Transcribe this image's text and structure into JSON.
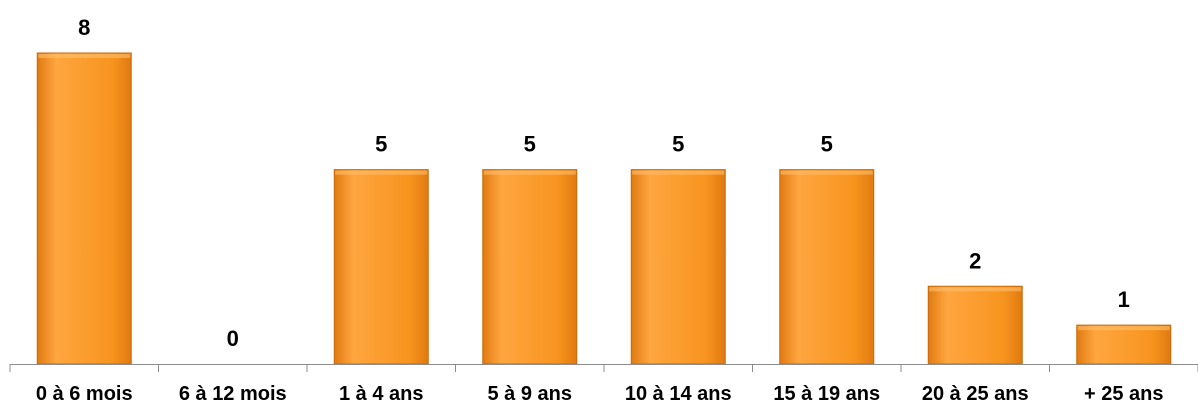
{
  "chart_data": {
    "type": "bar",
    "categories": [
      "0 à 6 mois",
      "6 à 12 mois",
      "1 à 4 ans",
      "5 à 9 ans",
      "10 à 14 ans",
      "15 à 19 ans",
      "20 à 25 ans",
      "+ 25 ans"
    ],
    "values": [
      8,
      0,
      5,
      5,
      5,
      5,
      2,
      1
    ],
    "data_labels": [
      "8",
      "0",
      "5",
      "5",
      "5",
      "5",
      "2",
      "1"
    ],
    "ylim": [
      0,
      8
    ],
    "grid": false,
    "legend": "none",
    "colors": {
      "bar_top": "#FFA640",
      "bar_mid": "#F7941E",
      "bar_bottom": "#E07A10",
      "bar_edge": "#C86A0A",
      "axis": "#8C8C8C",
      "text": "#000000"
    }
  }
}
